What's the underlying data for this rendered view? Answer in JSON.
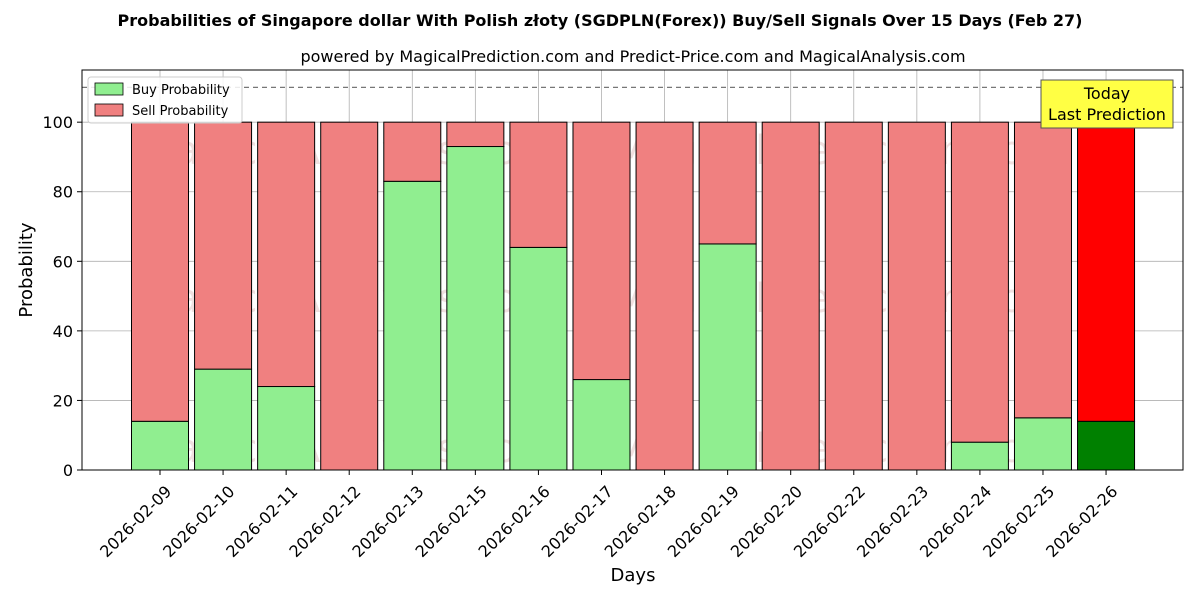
{
  "chart_data": {
    "type": "bar",
    "stacked": true,
    "title": "Probabilities of Singapore dollar With Polish złoty (SGDPLN(Forex)) Buy/Sell Signals Over 15 Days (Feb 27)",
    "subtitle": "powered by MagicalPrediction.com and Predict-Price.com and MagicalAnalysis.com",
    "xlabel": "Days",
    "ylabel": "Probability",
    "ylim": [
      0,
      115
    ],
    "yticks": [
      0,
      20,
      40,
      60,
      80,
      100
    ],
    "reference_line": 110,
    "grid": true,
    "legend_position": "top-left",
    "categories": [
      "2026-02-09",
      "2026-02-10",
      "2026-02-11",
      "2026-02-12",
      "2026-02-13",
      "2026-02-15",
      "2026-02-16",
      "2026-02-17",
      "2026-02-18",
      "2026-02-19",
      "2026-02-20",
      "2026-02-22",
      "2026-02-23",
      "2026-02-24",
      "2026-02-25",
      "2026-02-26"
    ],
    "series": [
      {
        "name": "Buy Probability",
        "color": "#90ee90",
        "values": [
          14,
          29,
          24,
          0,
          83,
          93,
          64,
          26,
          0,
          65,
          0,
          0,
          0,
          8,
          15,
          14
        ]
      },
      {
        "name": "Sell Probability",
        "color": "#f08080",
        "values": [
          86,
          71,
          76,
          100,
          17,
          7,
          36,
          74,
          100,
          35,
          100,
          100,
          100,
          92,
          85,
          86
        ]
      }
    ],
    "highlight": {
      "index": 15,
      "buy_color": "#008000",
      "sell_color": "#ff0000"
    },
    "annotation": {
      "line1": "Today",
      "line2": "Last Prediction",
      "color": "#ffff44"
    },
    "watermarks": [
      "MagicalAnalysis.com",
      "MagicalPrediction.com"
    ]
  }
}
